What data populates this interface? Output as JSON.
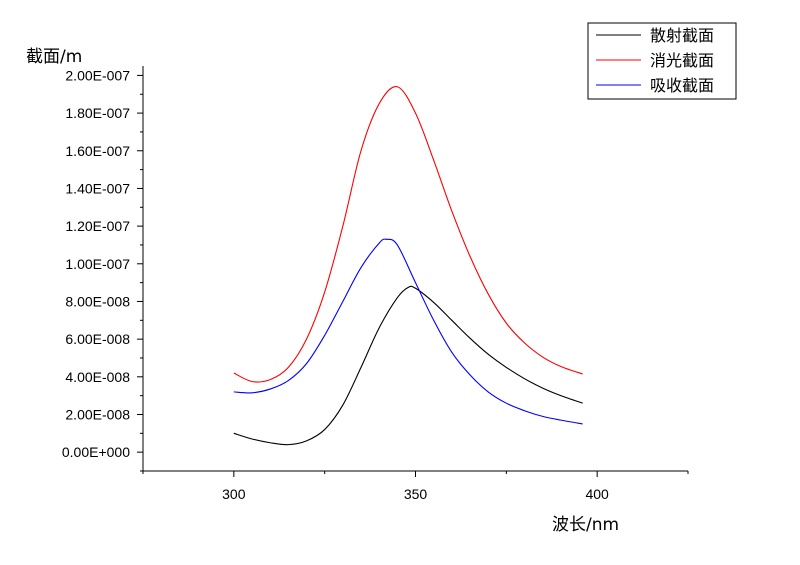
{
  "chart_data": {
    "type": "line",
    "title": "",
    "xlabel": "波长/nm",
    "ylabel": "截面/m",
    "xlim": [
      275,
      425
    ],
    "ylim": [
      -1e-08,
      2.05e-07
    ],
    "x_ticks": [
      300,
      350,
      400
    ],
    "x_tick_labels": [
      "300",
      "350",
      "400"
    ],
    "y_ticks": [
      0,
      2e-08,
      4e-08,
      6e-08,
      8e-08,
      1e-07,
      1.2e-07,
      1.4e-07,
      1.6e-07,
      1.8e-07,
      2e-07
    ],
    "y_tick_labels": [
      "0.00E+000",
      "2.00E-008",
      "4.00E-008",
      "6.00E-008",
      "8.00E-008",
      "1.00E-007",
      "1.20E-007",
      "1.40E-007",
      "1.60E-007",
      "1.80E-007",
      "2.00E-007"
    ],
    "grid": false,
    "legend_position": "top-right",
    "series": [
      {
        "name": "散射截面",
        "color": "#000000",
        "x": [
          300,
          305,
          310,
          315,
          320,
          325,
          330,
          335,
          340,
          345,
          348,
          350,
          355,
          360,
          365,
          370,
          375,
          380,
          385,
          390,
          396
        ],
        "y": [
          1e-08,
          7e-09,
          5e-09,
          4e-09,
          6e-09,
          1.2e-08,
          2.5e-08,
          4.5e-08,
          6.6e-08,
          8.2e-08,
          8.75e-08,
          8.7e-08,
          7.95e-08,
          7e-08,
          6.05e-08,
          5.2e-08,
          4.5e-08,
          3.9e-08,
          3.4e-08,
          3e-08,
          2.6e-08
        ]
      },
      {
        "name": "消光截面",
        "color": "#ff0000",
        "x": [
          300,
          305,
          310,
          315,
          320,
          325,
          330,
          335,
          340,
          345,
          350,
          355,
          360,
          365,
          370,
          375,
          380,
          385,
          390,
          396
        ],
        "y": [
          4.2e-08,
          3.75e-08,
          3.85e-08,
          4.5e-08,
          6e-08,
          8.5e-08,
          1.2e-07,
          1.6e-07,
          1.85e-07,
          1.94e-07,
          1.8e-07,
          1.55e-07,
          1.28e-07,
          1.04e-07,
          8.4e-08,
          6.85e-08,
          5.8e-08,
          5.05e-08,
          4.55e-08,
          4.15e-08
        ]
      },
      {
        "name": "吸收截面",
        "color": "#0000ff",
        "x": [
          300,
          305,
          310,
          315,
          320,
          325,
          330,
          335,
          340,
          342,
          345,
          350,
          355,
          360,
          365,
          370,
          375,
          380,
          385,
          390,
          396
        ],
        "y": [
          3.2e-08,
          3.15e-08,
          3.35e-08,
          3.8e-08,
          4.7e-08,
          6.2e-08,
          8e-08,
          9.8e-08,
          1.11e-07,
          1.13e-07,
          1.1e-07,
          9e-08,
          7e-08,
          5.3e-08,
          4.1e-08,
          3.2e-08,
          2.6e-08,
          2.2e-08,
          1.9e-08,
          1.7e-08,
          1.5e-08
        ]
      }
    ]
  }
}
